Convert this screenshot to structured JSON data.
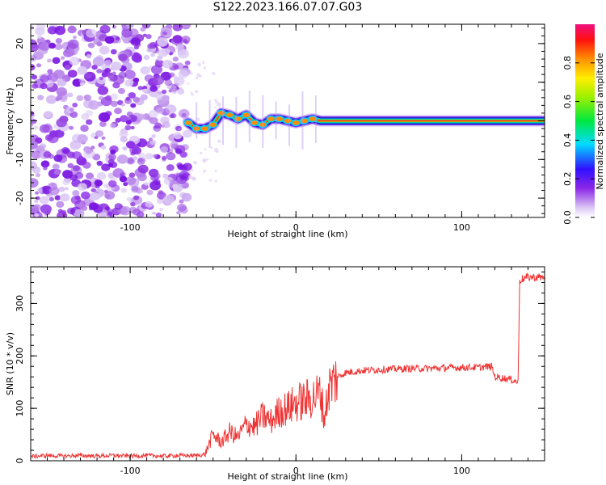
{
  "title": "S122.2023.166.07.07.G03",
  "chart_data": [
    {
      "type": "heatmap",
      "xlabel": "Height of straight line (km)",
      "ylabel": "Frequency (Hz)",
      "xlim": [
        -160,
        150
      ],
      "ylim": [
        -25,
        25
      ],
      "xticks": [
        -100,
        0,
        100
      ],
      "yticks": [
        -20,
        -10,
        0,
        10,
        20
      ],
      "colorbar": {
        "label": "Normalized spectral amplitude",
        "range": [
          0,
          1
        ],
        "ticks": [
          0.0,
          0.2,
          0.4,
          0.6,
          0.8
        ]
      },
      "noise_region_x": [
        -160,
        -65
      ],
      "signal_track": [
        {
          "x": -65,
          "y": -0.5
        },
        {
          "x": -60,
          "y": -2
        },
        {
          "x": -55,
          "y": -2
        },
        {
          "x": -50,
          "y": -1
        },
        {
          "x": -45,
          "y": 2
        },
        {
          "x": -40,
          "y": 1.5
        },
        {
          "x": -35,
          "y": 0.5
        },
        {
          "x": -30,
          "y": 1.5
        },
        {
          "x": -25,
          "y": -0.5
        },
        {
          "x": -20,
          "y": -1
        },
        {
          "x": -15,
          "y": 0.5
        },
        {
          "x": -10,
          "y": 0.5
        },
        {
          "x": -5,
          "y": 0
        },
        {
          "x": 0,
          "y": -0.5
        },
        {
          "x": 5,
          "y": 0
        },
        {
          "x": 10,
          "y": 0.5
        },
        {
          "x": 15,
          "y": 0
        },
        {
          "x": 150,
          "y": 0
        }
      ]
    },
    {
      "type": "line",
      "xlabel": "Height of straight line (km)",
      "ylabel": "SNR (10 * v/v)",
      "xlim": [
        -160,
        150
      ],
      "ylim": [
        0,
        370
      ],
      "xticks": [
        -100,
        0,
        100
      ],
      "yticks": [
        0,
        100,
        200,
        300
      ],
      "series": [
        {
          "color": "#ee3333",
          "points": [
            [
              -160,
              8
            ],
            [
              -150,
              10
            ],
            [
              -140,
              9
            ],
            [
              -130,
              10
            ],
            [
              -120,
              9
            ],
            [
              -110,
              10
            ],
            [
              -100,
              9
            ],
            [
              -90,
              10
            ],
            [
              -80,
              9
            ],
            [
              -70,
              10
            ],
            [
              -60,
              10
            ],
            [
              -55,
              12
            ],
            [
              -50,
              50
            ],
            [
              -45,
              35
            ],
            [
              -40,
              55
            ],
            [
              -35,
              45
            ],
            [
              -30,
              70
            ],
            [
              -25,
              65
            ],
            [
              -20,
              85
            ],
            [
              -15,
              75
            ],
            [
              -10,
              95
            ],
            [
              -5,
              100
            ],
            [
              0,
              110
            ],
            [
              5,
              115
            ],
            [
              10,
              120
            ],
            [
              15,
              130
            ],
            [
              17,
              80
            ],
            [
              20,
              140
            ],
            [
              25,
              160
            ],
            [
              30,
              168
            ],
            [
              40,
              172
            ],
            [
              50,
              174
            ],
            [
              60,
              175
            ],
            [
              70,
              176
            ],
            [
              80,
              176
            ],
            [
              90,
              177
            ],
            [
              100,
              178
            ],
            [
              110,
              178
            ],
            [
              118,
              180
            ],
            [
              120,
              160
            ],
            [
              130,
              155
            ],
            [
              134,
              150
            ],
            [
              135,
              345
            ],
            [
              140,
              350
            ],
            [
              150,
              350
            ]
          ]
        }
      ]
    }
  ]
}
